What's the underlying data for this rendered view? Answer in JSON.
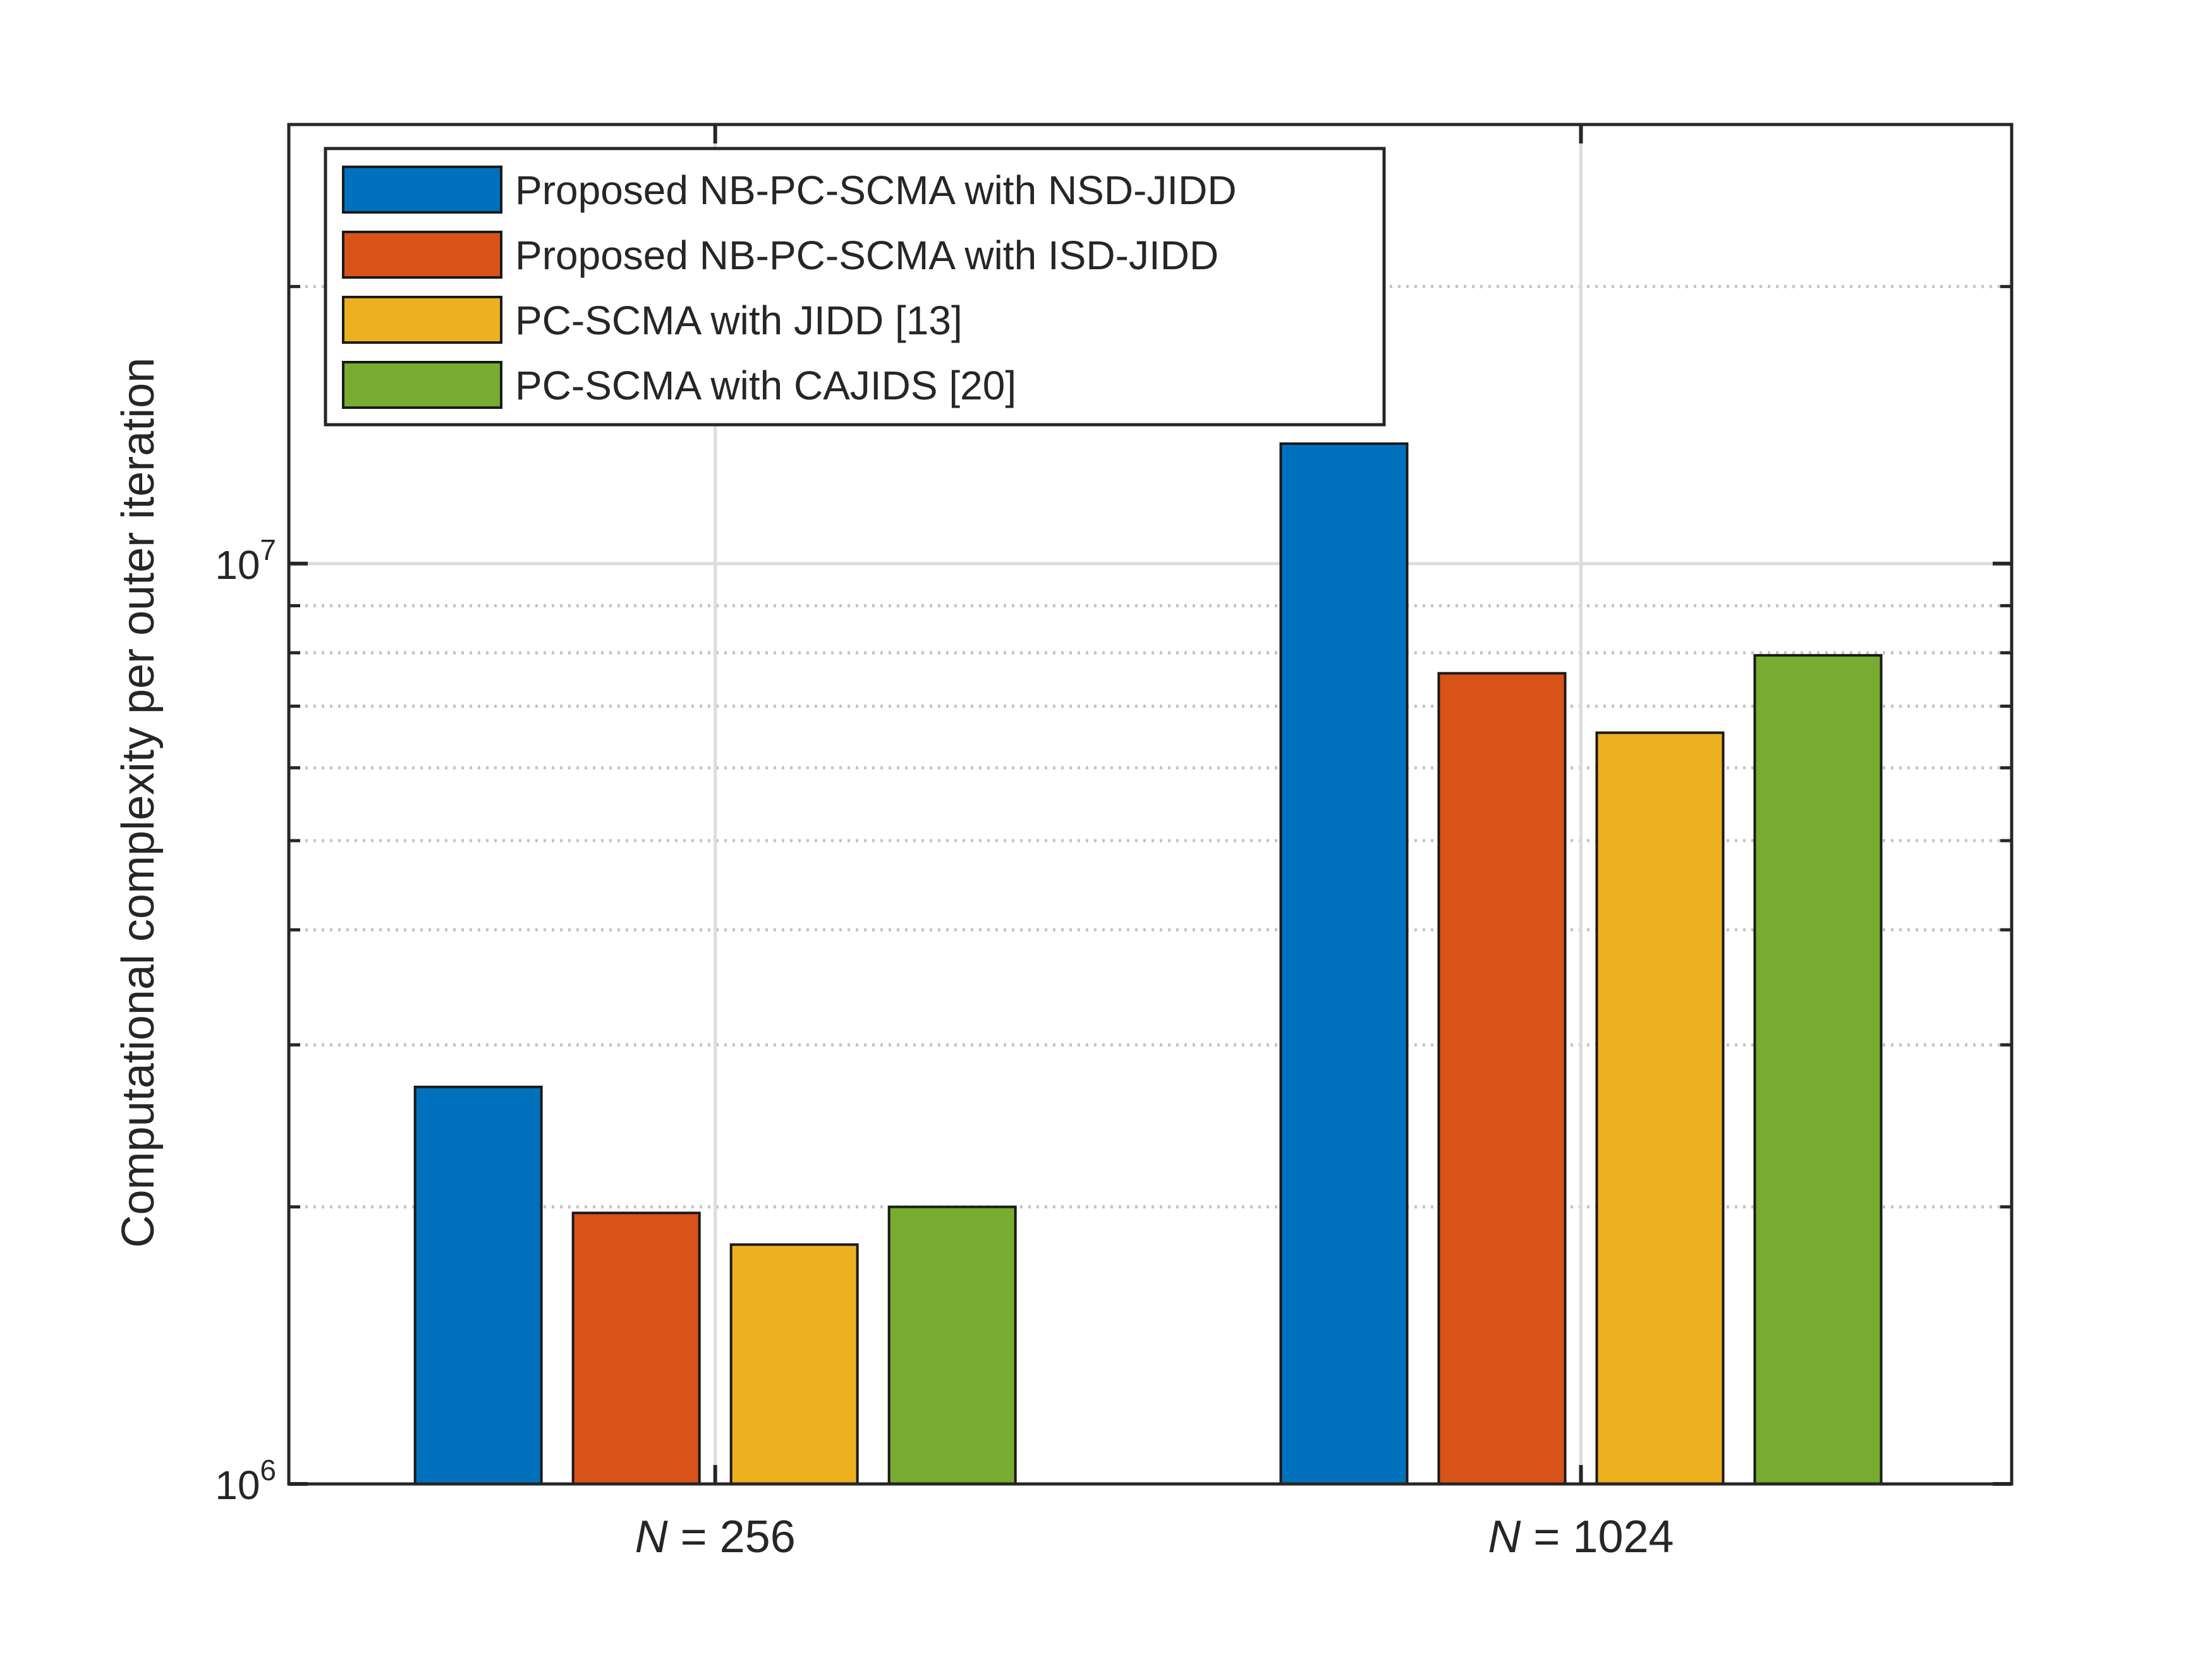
{
  "chart_data": {
    "type": "bar",
    "title": "",
    "xlabel": "",
    "ylabel": "Computational complexity per outer iteration",
    "yscale": "log",
    "ylim": [
      1000000,
      30000000
    ],
    "y_ticks": [
      {
        "value": 1000000,
        "base": "10",
        "exp": "6"
      },
      {
        "value": 10000000,
        "base": "10",
        "exp": "7"
      }
    ],
    "categories": [
      {
        "var": "N",
        "rest": " = 256"
      },
      {
        "var": "N",
        "rest": " = 1024"
      }
    ],
    "series": [
      {
        "name": "Proposed NB-PC-SCMA with NSD-JIDD",
        "color": "#0072BD",
        "values": [
          2700000,
          13500000
        ]
      },
      {
        "name": "Proposed NB-PC-SCMA with ISD-JIDD",
        "color": "#D95319",
        "values": [
          1970000,
          7600000
        ]
      },
      {
        "name": "PC-SCMA with JIDD [13]",
        "color": "#EDB120",
        "values": [
          1820000,
          6550000
        ]
      },
      {
        "name": "PC-SCMA with CAJIDS [20]",
        "color": "#77AC30",
        "values": [
          2000000,
          7950000
        ]
      }
    ],
    "grid": true,
    "minor_grid": true,
    "legend_position": "top-left"
  }
}
